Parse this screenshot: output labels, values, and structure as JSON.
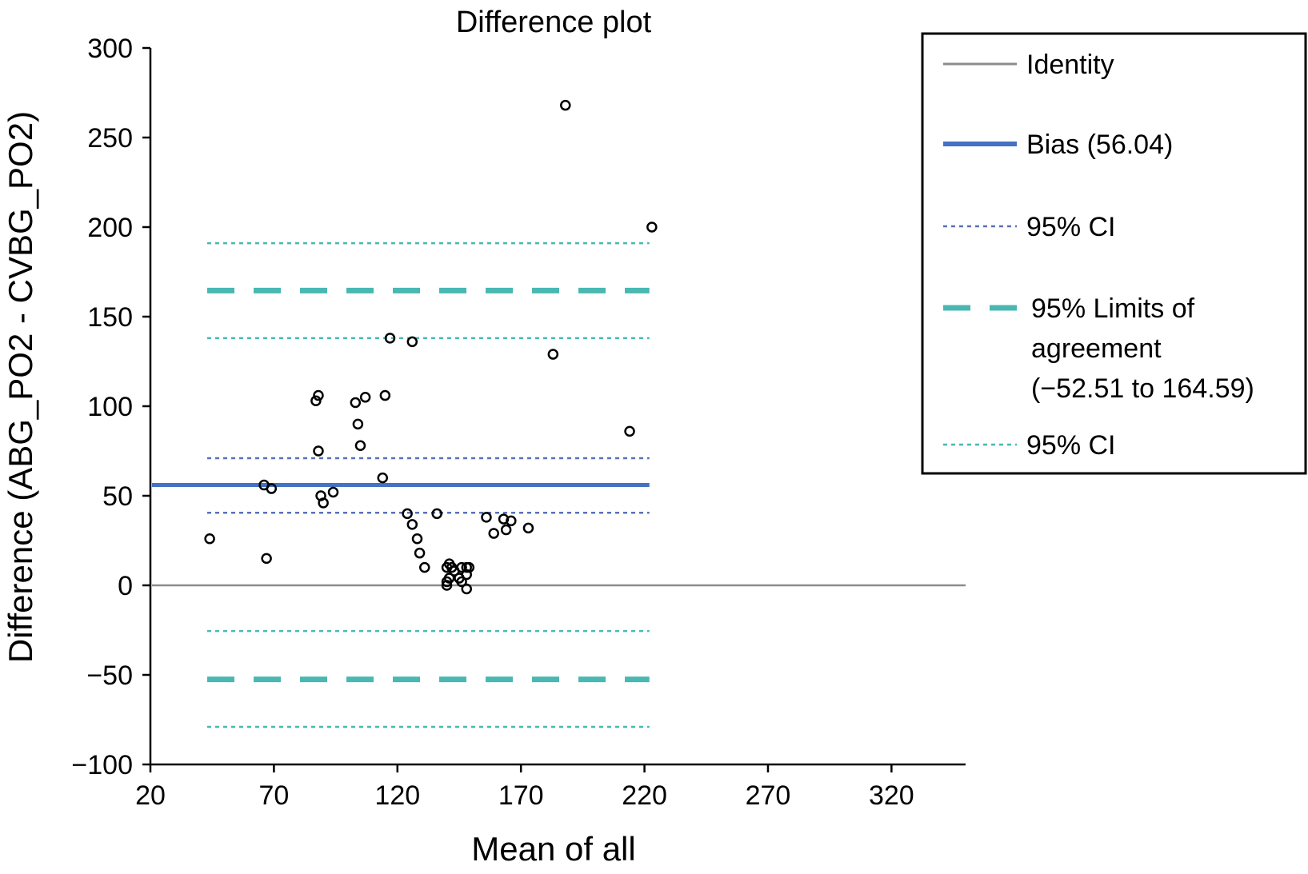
{
  "chart_data": {
    "type": "scatter",
    "title": "Difference plot",
    "xlabel": "Mean of all",
    "ylabel": "Difference (ABG_PO2 - CVBG_PO2)",
    "xlim": [
      20,
      350
    ],
    "ylim": [
      -100,
      300
    ],
    "xticks": [
      20,
      70,
      120,
      170,
      220,
      270,
      320
    ],
    "yticks": [
      300,
      250,
      200,
      150,
      100,
      50,
      0,
      -50,
      -100
    ],
    "xtick_labels": [
      "20",
      "70",
      "120",
      "170",
      "220",
      "270",
      "320"
    ],
    "ytick_labels": [
      "300",
      "250",
      "200",
      "150",
      "100",
      "50",
      "0",
      "−50",
      "−100"
    ],
    "grid": false,
    "legend_position": "top-right",
    "series": [
      {
        "name": "Observations",
        "type": "scatter",
        "color": "#000000",
        "x": [
          44,
          66,
          67,
          69,
          87,
          88,
          88,
          89,
          90,
          94,
          103,
          104,
          105,
          107,
          114,
          115,
          117,
          124,
          126,
          126,
          128,
          129,
          131,
          136,
          140,
          140,
          140,
          141,
          141,
          142,
          143,
          145,
          146,
          146,
          148,
          148,
          148,
          149,
          156,
          159,
          163,
          164,
          166,
          173,
          183,
          188,
          214,
          223
        ],
        "y": [
          26,
          56,
          15,
          54,
          103,
          106,
          75,
          50,
          46,
          52,
          102,
          90,
          78,
          105,
          60,
          106,
          138,
          40,
          136,
          34,
          26,
          18,
          10,
          40,
          10,
          2,
          0,
          12,
          4,
          10,
          8,
          4,
          10,
          2,
          10,
          6,
          -2,
          10,
          38,
          29,
          37,
          31,
          36,
          32,
          129,
          268,
          86,
          200
        ]
      }
    ],
    "reference_lines": [
      {
        "name": "Identity",
        "value": 0,
        "x_range": [
          20,
          350
        ],
        "color": "#8c8c8c",
        "style": "solid"
      },
      {
        "name": "Bias (56.04)",
        "value": 56.04,
        "x_range": [
          20,
          222
        ],
        "color": "#4472c4",
        "style": "solid"
      },
      {
        "name": "95% CI",
        "value": 71,
        "x_range": [
          43,
          222
        ],
        "color": "#5b6fb5",
        "style": "dotted"
      },
      {
        "name": "95% CI",
        "value": 40.5,
        "x_range": [
          43,
          222
        ],
        "color": "#5b6fb5",
        "style": "dotted"
      },
      {
        "name": "95% Limits of agreement (−52.51 to 164.59)",
        "value": 164.59,
        "x_range": [
          43,
          222
        ],
        "color": "#49b8b2",
        "style": "dashed"
      },
      {
        "name": "95% Limits of agreement (−52.51 to 164.59)",
        "value": -52.51,
        "x_range": [
          43,
          222
        ],
        "color": "#49b8b2",
        "style": "dashed"
      },
      {
        "name": "95% CI",
        "value": 191,
        "x_range": [
          43,
          222
        ],
        "color": "#49b8b2",
        "style": "dotted"
      },
      {
        "name": "95% CI",
        "value": 138,
        "x_range": [
          43,
          222
        ],
        "color": "#49b8b2",
        "style": "dotted"
      },
      {
        "name": "95% CI",
        "value": -25.5,
        "x_range": [
          43,
          222
        ],
        "color": "#49b8b2",
        "style": "dotted"
      },
      {
        "name": "95% CI",
        "value": -79,
        "x_range": [
          43,
          222
        ],
        "color": "#49b8b2",
        "style": "dotted"
      }
    ],
    "legend": [
      {
        "label_lines": [
          "Identity"
        ],
        "color": "#8c8c8c",
        "style": "solid"
      },
      {
        "label_lines": [
          "Bias (56.04)"
        ],
        "color": "#4472c4",
        "style": "solid"
      },
      {
        "label_lines": [
          "95% CI"
        ],
        "color": "#5b6fb5",
        "style": "dotted"
      },
      {
        "label_lines": [
          "95% Limits of",
          "agreement",
          "(−52.51 to 164.59)"
        ],
        "color": "#49b8b2",
        "style": "dashed"
      },
      {
        "label_lines": [
          "95% CI"
        ],
        "color": "#49b8b2",
        "style": "dotted"
      }
    ]
  }
}
